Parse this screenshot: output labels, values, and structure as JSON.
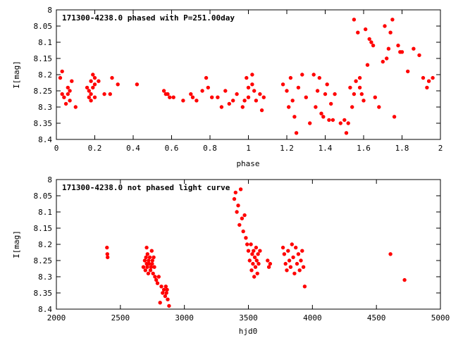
{
  "chart_data": [
    {
      "type": "scatter",
      "title": "171300-4238.0 phased with P=251.00day",
      "xlabel": "phase",
      "ylabel": "I[mag]",
      "xlim": [
        0,
        2
      ],
      "ylim": [
        8.4,
        8
      ],
      "y_inverted": true,
      "xticks": [
        "0",
        "0.2",
        "0.4",
        "0.6",
        "0.8",
        "1",
        "1.2",
        "1.4",
        "1.6",
        "1.8",
        "2"
      ],
      "yticks": [
        "8",
        "8.05",
        "8.1",
        "8.15",
        "8.2",
        "8.25",
        "8.3",
        "8.35",
        "8.4"
      ],
      "grid": false,
      "marker_color": "#ff0000",
      "x": [
        0.02,
        0.03,
        0.03,
        0.04,
        0.05,
        0.06,
        0.06,
        0.07,
        0.07,
        0.08,
        0.1,
        0.16,
        0.17,
        0.17,
        0.18,
        0.18,
        0.18,
        0.19,
        0.19,
        0.2,
        0.2,
        0.2,
        0.22,
        0.25,
        0.28,
        0.29,
        0.32,
        0.42,
        0.56,
        0.57,
        0.58,
        0.59,
        0.61,
        0.66,
        0.7,
        0.71,
        0.73,
        0.76,
        0.78,
        0.79,
        0.81,
        0.84,
        0.86,
        0.88,
        0.9,
        0.92,
        0.94,
        0.97,
        0.98,
        0.99,
        1.0,
        1.0,
        1.02,
        1.02,
        1.03,
        1.04,
        1.06,
        1.07,
        1.08,
        1.18,
        1.2,
        1.21,
        1.22,
        1.23,
        1.24,
        1.25,
        1.26,
        1.28,
        1.3,
        1.32,
        1.34,
        1.35,
        1.36,
        1.37,
        1.38,
        1.39,
        1.4,
        1.41,
        1.42,
        1.43,
        1.44,
        1.45,
        1.48,
        1.5,
        1.51,
        1.52,
        1.53,
        1.54,
        1.55,
        1.55,
        1.56,
        1.57,
        1.58,
        1.58,
        1.59,
        1.6,
        1.61,
        1.62,
        1.63,
        1.64,
        1.65,
        1.66,
        1.68,
        1.7,
        1.71,
        1.72,
        1.73,
        1.74,
        1.75,
        1.76,
        1.78,
        1.79,
        1.8,
        1.83,
        1.86,
        1.89,
        1.91,
        1.93,
        1.94,
        1.96
      ],
      "y": [
        8.21,
        8.26,
        8.19,
        8.27,
        8.29,
        8.24,
        8.26,
        8.25,
        8.28,
        8.22,
        8.3,
        8.24,
        8.25,
        8.27,
        8.28,
        8.22,
        8.26,
        8.2,
        8.24,
        8.21,
        8.23,
        8.27,
        8.22,
        8.26,
        8.26,
        8.21,
        8.23,
        8.23,
        8.25,
        8.26,
        8.26,
        8.27,
        8.27,
        8.28,
        8.26,
        8.27,
        8.28,
        8.25,
        8.21,
        8.24,
        8.27,
        8.27,
        8.3,
        8.25,
        8.29,
        8.28,
        8.26,
        8.3,
        8.28,
        8.21,
        8.24,
        8.27,
        8.2,
        8.23,
        8.25,
        8.28,
        8.26,
        8.31,
        8.27,
        8.23,
        8.25,
        8.3,
        8.21,
        8.28,
        8.33,
        8.38,
        8.24,
        8.2,
        8.27,
        8.35,
        8.2,
        8.3,
        8.25,
        8.21,
        8.32,
        8.33,
        8.26,
        8.23,
        8.34,
        8.29,
        8.34,
        8.26,
        8.35,
        8.34,
        8.38,
        8.35,
        8.24,
        8.3,
        8.26,
        8.03,
        8.22,
        8.07,
        8.24,
        8.21,
        8.26,
        8.28,
        8.06,
        8.17,
        8.09,
        8.1,
        8.11,
        8.27,
        8.3,
        8.16,
        8.05,
        8.15,
        8.12,
        8.07,
        8.03,
        8.33,
        8.11,
        8.13,
        8.13,
        8.19,
        8.12,
        8.14,
        8.21,
        8.24,
        8.22,
        8.21
      ]
    },
    {
      "type": "scatter",
      "title": "171300-4238.0 not phased light curve",
      "xlabel": "hjd0",
      "ylabel": "I[mag]",
      "xlim": [
        2000,
        5000
      ],
      "ylim": [
        8.4,
        8
      ],
      "y_inverted": true,
      "xticks": [
        "2000",
        "2500",
        "3000",
        "3500",
        "4000",
        "4500",
        "5000"
      ],
      "yticks": [
        "8",
        "8.05",
        "8.1",
        "8.15",
        "8.2",
        "8.25",
        "8.3",
        "8.35",
        "8.4"
      ],
      "grid": false,
      "marker_color": "#ff0000",
      "x": [
        2395,
        2398,
        2400,
        2680,
        2690,
        2695,
        2700,
        2705,
        2705,
        2710,
        2712,
        2718,
        2720,
        2725,
        2730,
        2735,
        2740,
        2745,
        2748,
        2750,
        2755,
        2760,
        2765,
        2770,
        2780,
        2790,
        2800,
        2810,
        2820,
        2830,
        2840,
        2850,
        2855,
        2860,
        2865,
        2870,
        2880,
        3390,
        3400,
        3410,
        3420,
        3430,
        3440,
        3450,
        3460,
        3470,
        3480,
        3490,
        3500,
        3510,
        3520,
        3525,
        3530,
        3535,
        3540,
        3545,
        3550,
        3555,
        3560,
        3565,
        3570,
        3575,
        3580,
        3590,
        3650,
        3660,
        3670,
        3770,
        3780,
        3790,
        3800,
        3810,
        3820,
        3830,
        3840,
        3850,
        3860,
        3870,
        3880,
        3890,
        3900,
        3910,
        3920,
        3930,
        3940,
        4610,
        4720
      ],
      "y": [
        8.21,
        8.23,
        8.24,
        8.27,
        8.25,
        8.28,
        8.24,
        8.26,
        8.21,
        8.27,
        8.23,
        8.29,
        8.25,
        8.26,
        8.24,
        8.28,
        8.27,
        8.22,
        8.26,
        8.25,
        8.29,
        8.24,
        8.27,
        8.3,
        8.31,
        8.32,
        8.3,
        8.38,
        8.33,
        8.35,
        8.34,
        8.36,
        8.33,
        8.35,
        8.34,
        8.37,
        8.39,
        8.06,
        8.04,
        8.1,
        8.08,
        8.14,
        8.03,
        8.12,
        8.16,
        8.11,
        8.18,
        8.2,
        8.22,
        8.25,
        8.2,
        8.28,
        8.23,
        8.26,
        8.22,
        8.3,
        8.24,
        8.27,
        8.21,
        8.25,
        8.29,
        8.23,
        8.26,
        8.22,
        8.25,
        8.27,
        8.26,
        8.21,
        8.23,
        8.26,
        8.28,
        8.22,
        8.25,
        8.27,
        8.2,
        8.24,
        8.29,
        8.21,
        8.26,
        8.23,
        8.28,
        8.25,
        8.22,
        8.27,
        8.33,
        8.23,
        8.31
      ]
    }
  ]
}
